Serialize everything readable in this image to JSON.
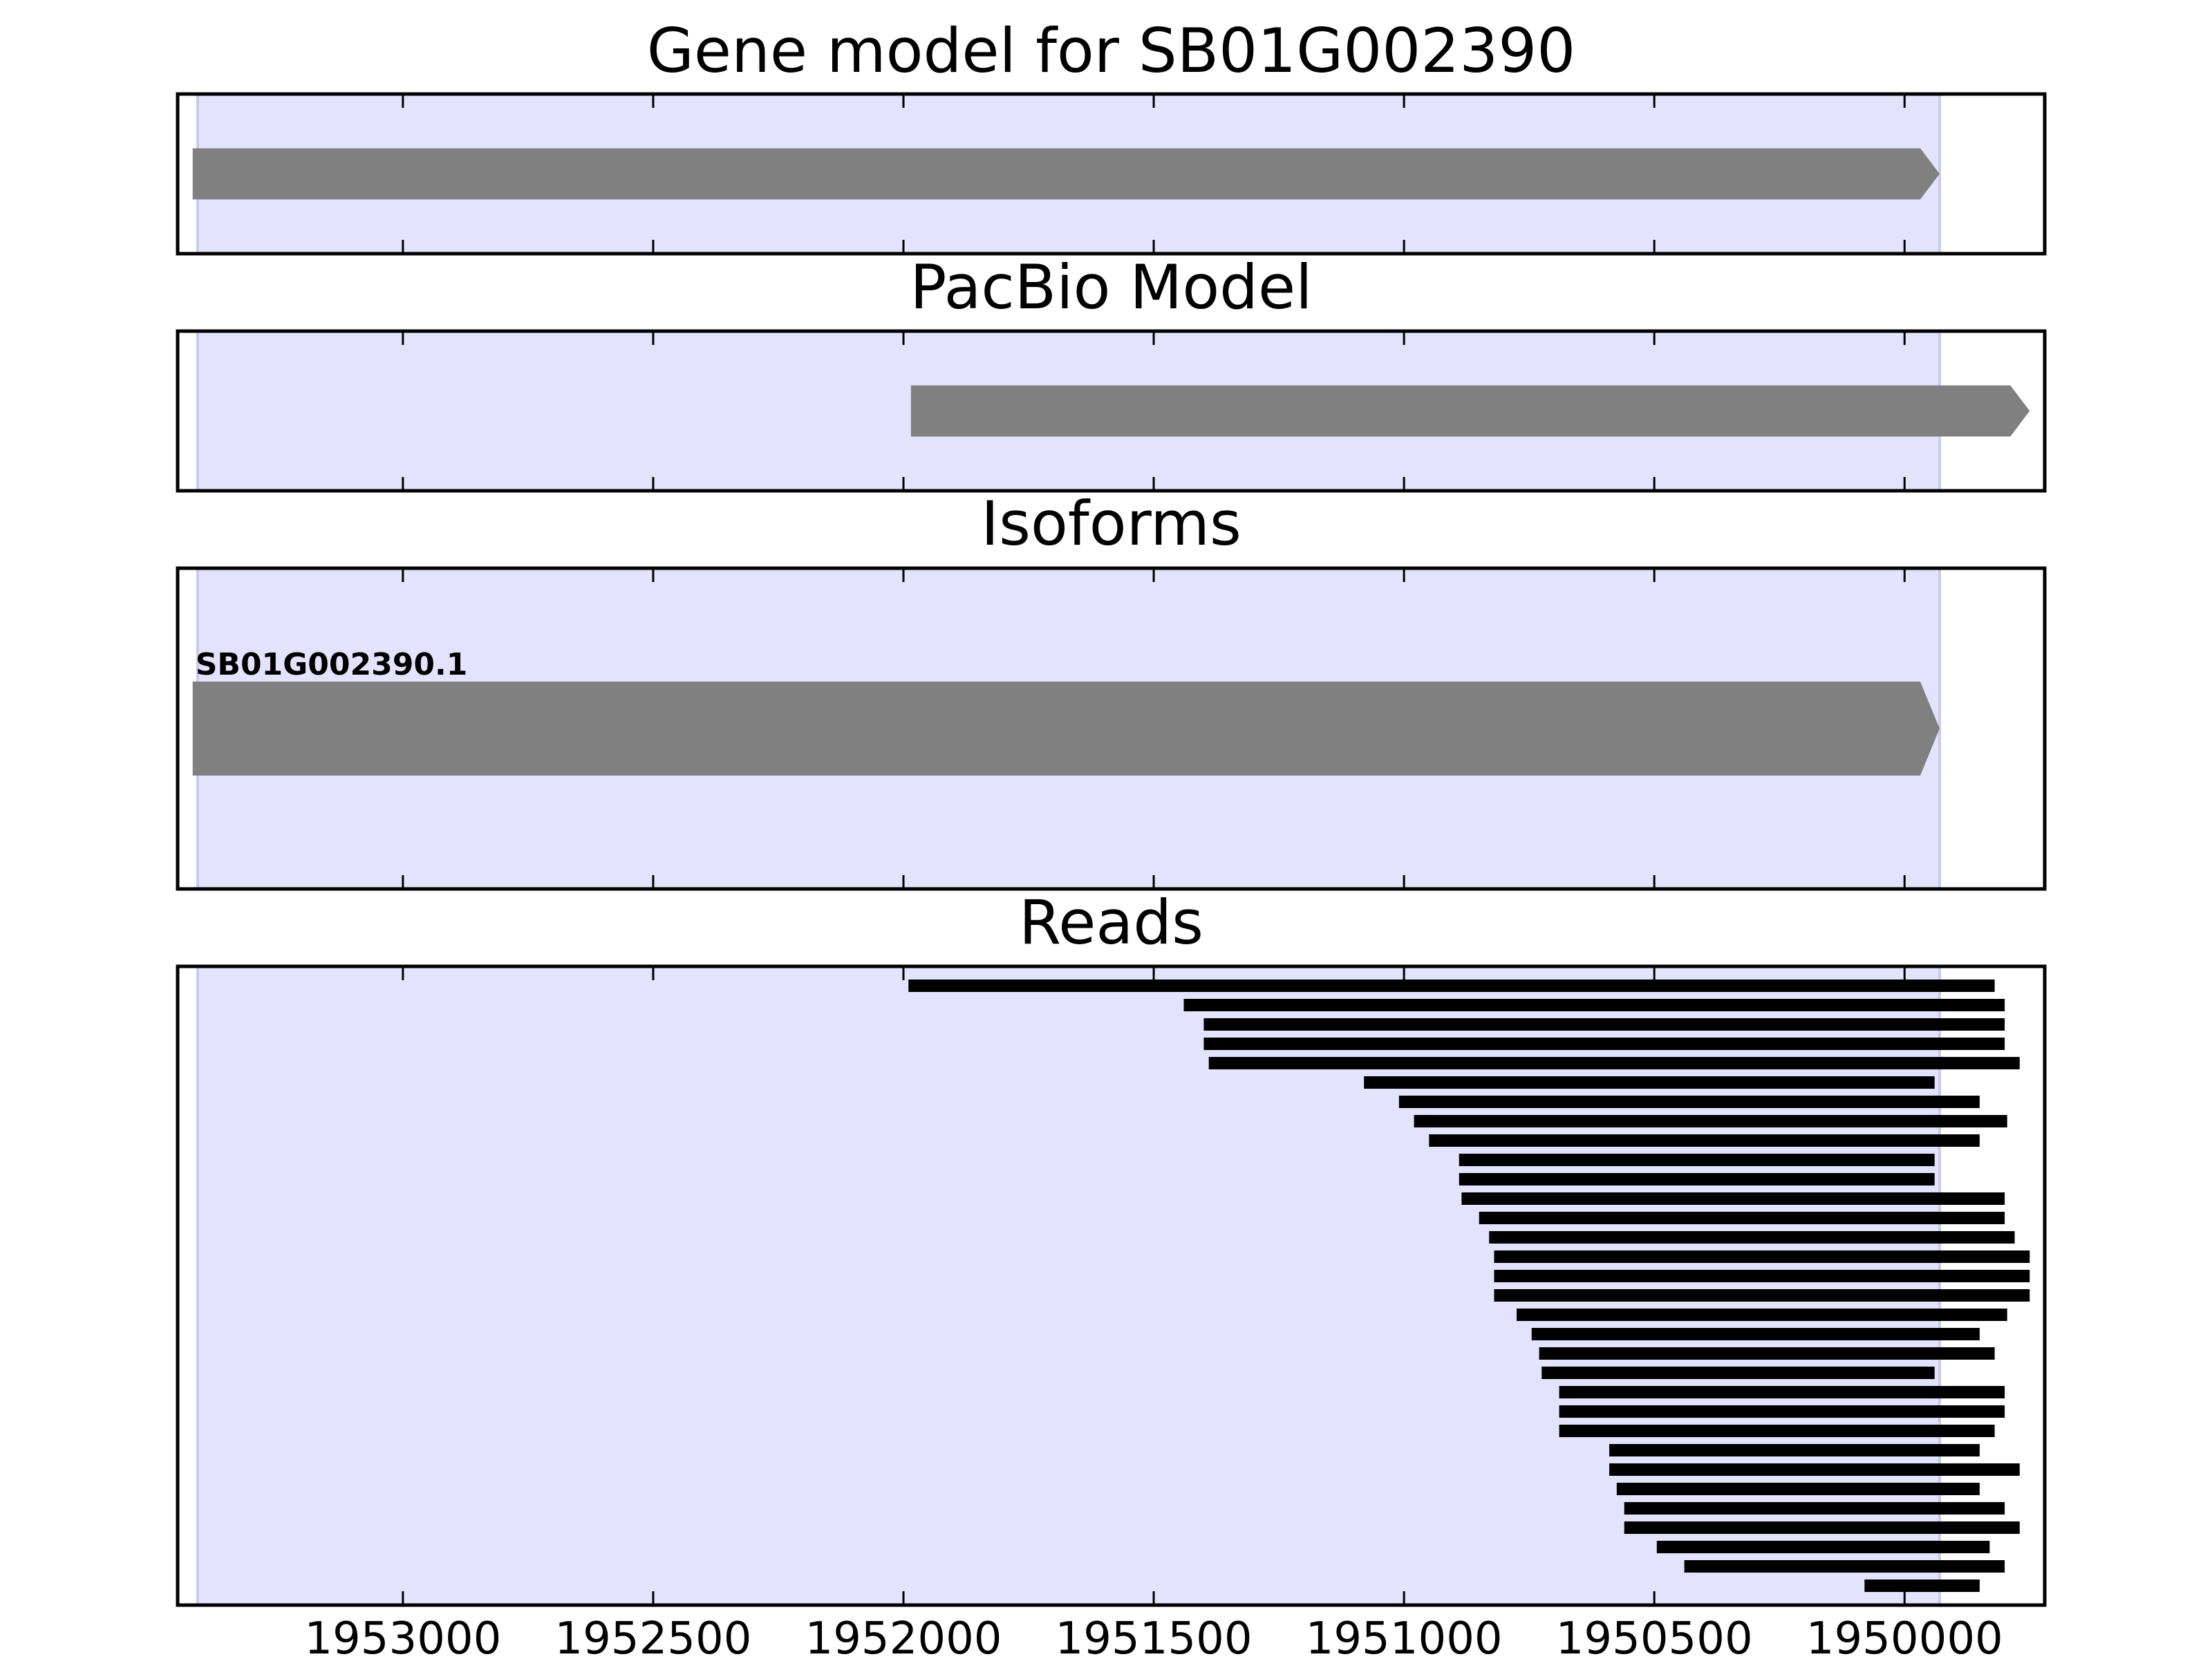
{
  "chart_data": {
    "type": "bar",
    "x_axis": {
      "inverted": true,
      "xlim": [
        1953450,
        1949720
      ],
      "ticks": [
        1953000,
        1952500,
        1952000,
        1951500,
        1951000,
        1950500,
        1950000
      ],
      "tick_labels": [
        "1953000",
        "1952500",
        "1952000",
        "1951500",
        "1951000",
        "1950500",
        "1950000"
      ]
    },
    "gene_region": {
      "start": 1953410,
      "end": 1949930,
      "color": "#e3e3fd"
    },
    "panels": [
      {
        "title": "Gene model for SB01G002390",
        "features": [
          {
            "start": 1953420,
            "end": 1949930,
            "strand": "-",
            "color": "#808080"
          }
        ]
      },
      {
        "title": "PacBio Model",
        "features": [
          {
            "start": 1951985,
            "end": 1949750,
            "strand": "-",
            "color": "#808080"
          }
        ]
      },
      {
        "title": "Isoforms",
        "features": [
          {
            "name": "SB01G002390.1",
            "start": 1953420,
            "end": 1949930,
            "strand": "-",
            "color": "#808080"
          }
        ]
      },
      {
        "title": "Reads",
        "read_color": "#000000",
        "reads": [
          [
            1951990,
            1949820
          ],
          [
            1951440,
            1949800
          ],
          [
            1951400,
            1949800
          ],
          [
            1951400,
            1949800
          ],
          [
            1951390,
            1949770
          ],
          [
            1951080,
            1949940
          ],
          [
            1951010,
            1949850
          ],
          [
            1950980,
            1949795
          ],
          [
            1950950,
            1949850
          ],
          [
            1950890,
            1949940
          ],
          [
            1950890,
            1949940
          ],
          [
            1950885,
            1949800
          ],
          [
            1950850,
            1949800
          ],
          [
            1950830,
            1949780
          ],
          [
            1950820,
            1949750
          ],
          [
            1950820,
            1949750
          ],
          [
            1950820,
            1949750
          ],
          [
            1950775,
            1949795
          ],
          [
            1950745,
            1949850
          ],
          [
            1950730,
            1949820
          ],
          [
            1950725,
            1949940
          ],
          [
            1950690,
            1949800
          ],
          [
            1950690,
            1949800
          ],
          [
            1950690,
            1949820
          ],
          [
            1950590,
            1949850
          ],
          [
            1950590,
            1949770
          ],
          [
            1950575,
            1949850
          ],
          [
            1950560,
            1949800
          ],
          [
            1950560,
            1949770
          ],
          [
            1950495,
            1949830
          ],
          [
            1950440,
            1949800
          ],
          [
            1950080,
            1949850
          ]
        ]
      }
    ]
  }
}
